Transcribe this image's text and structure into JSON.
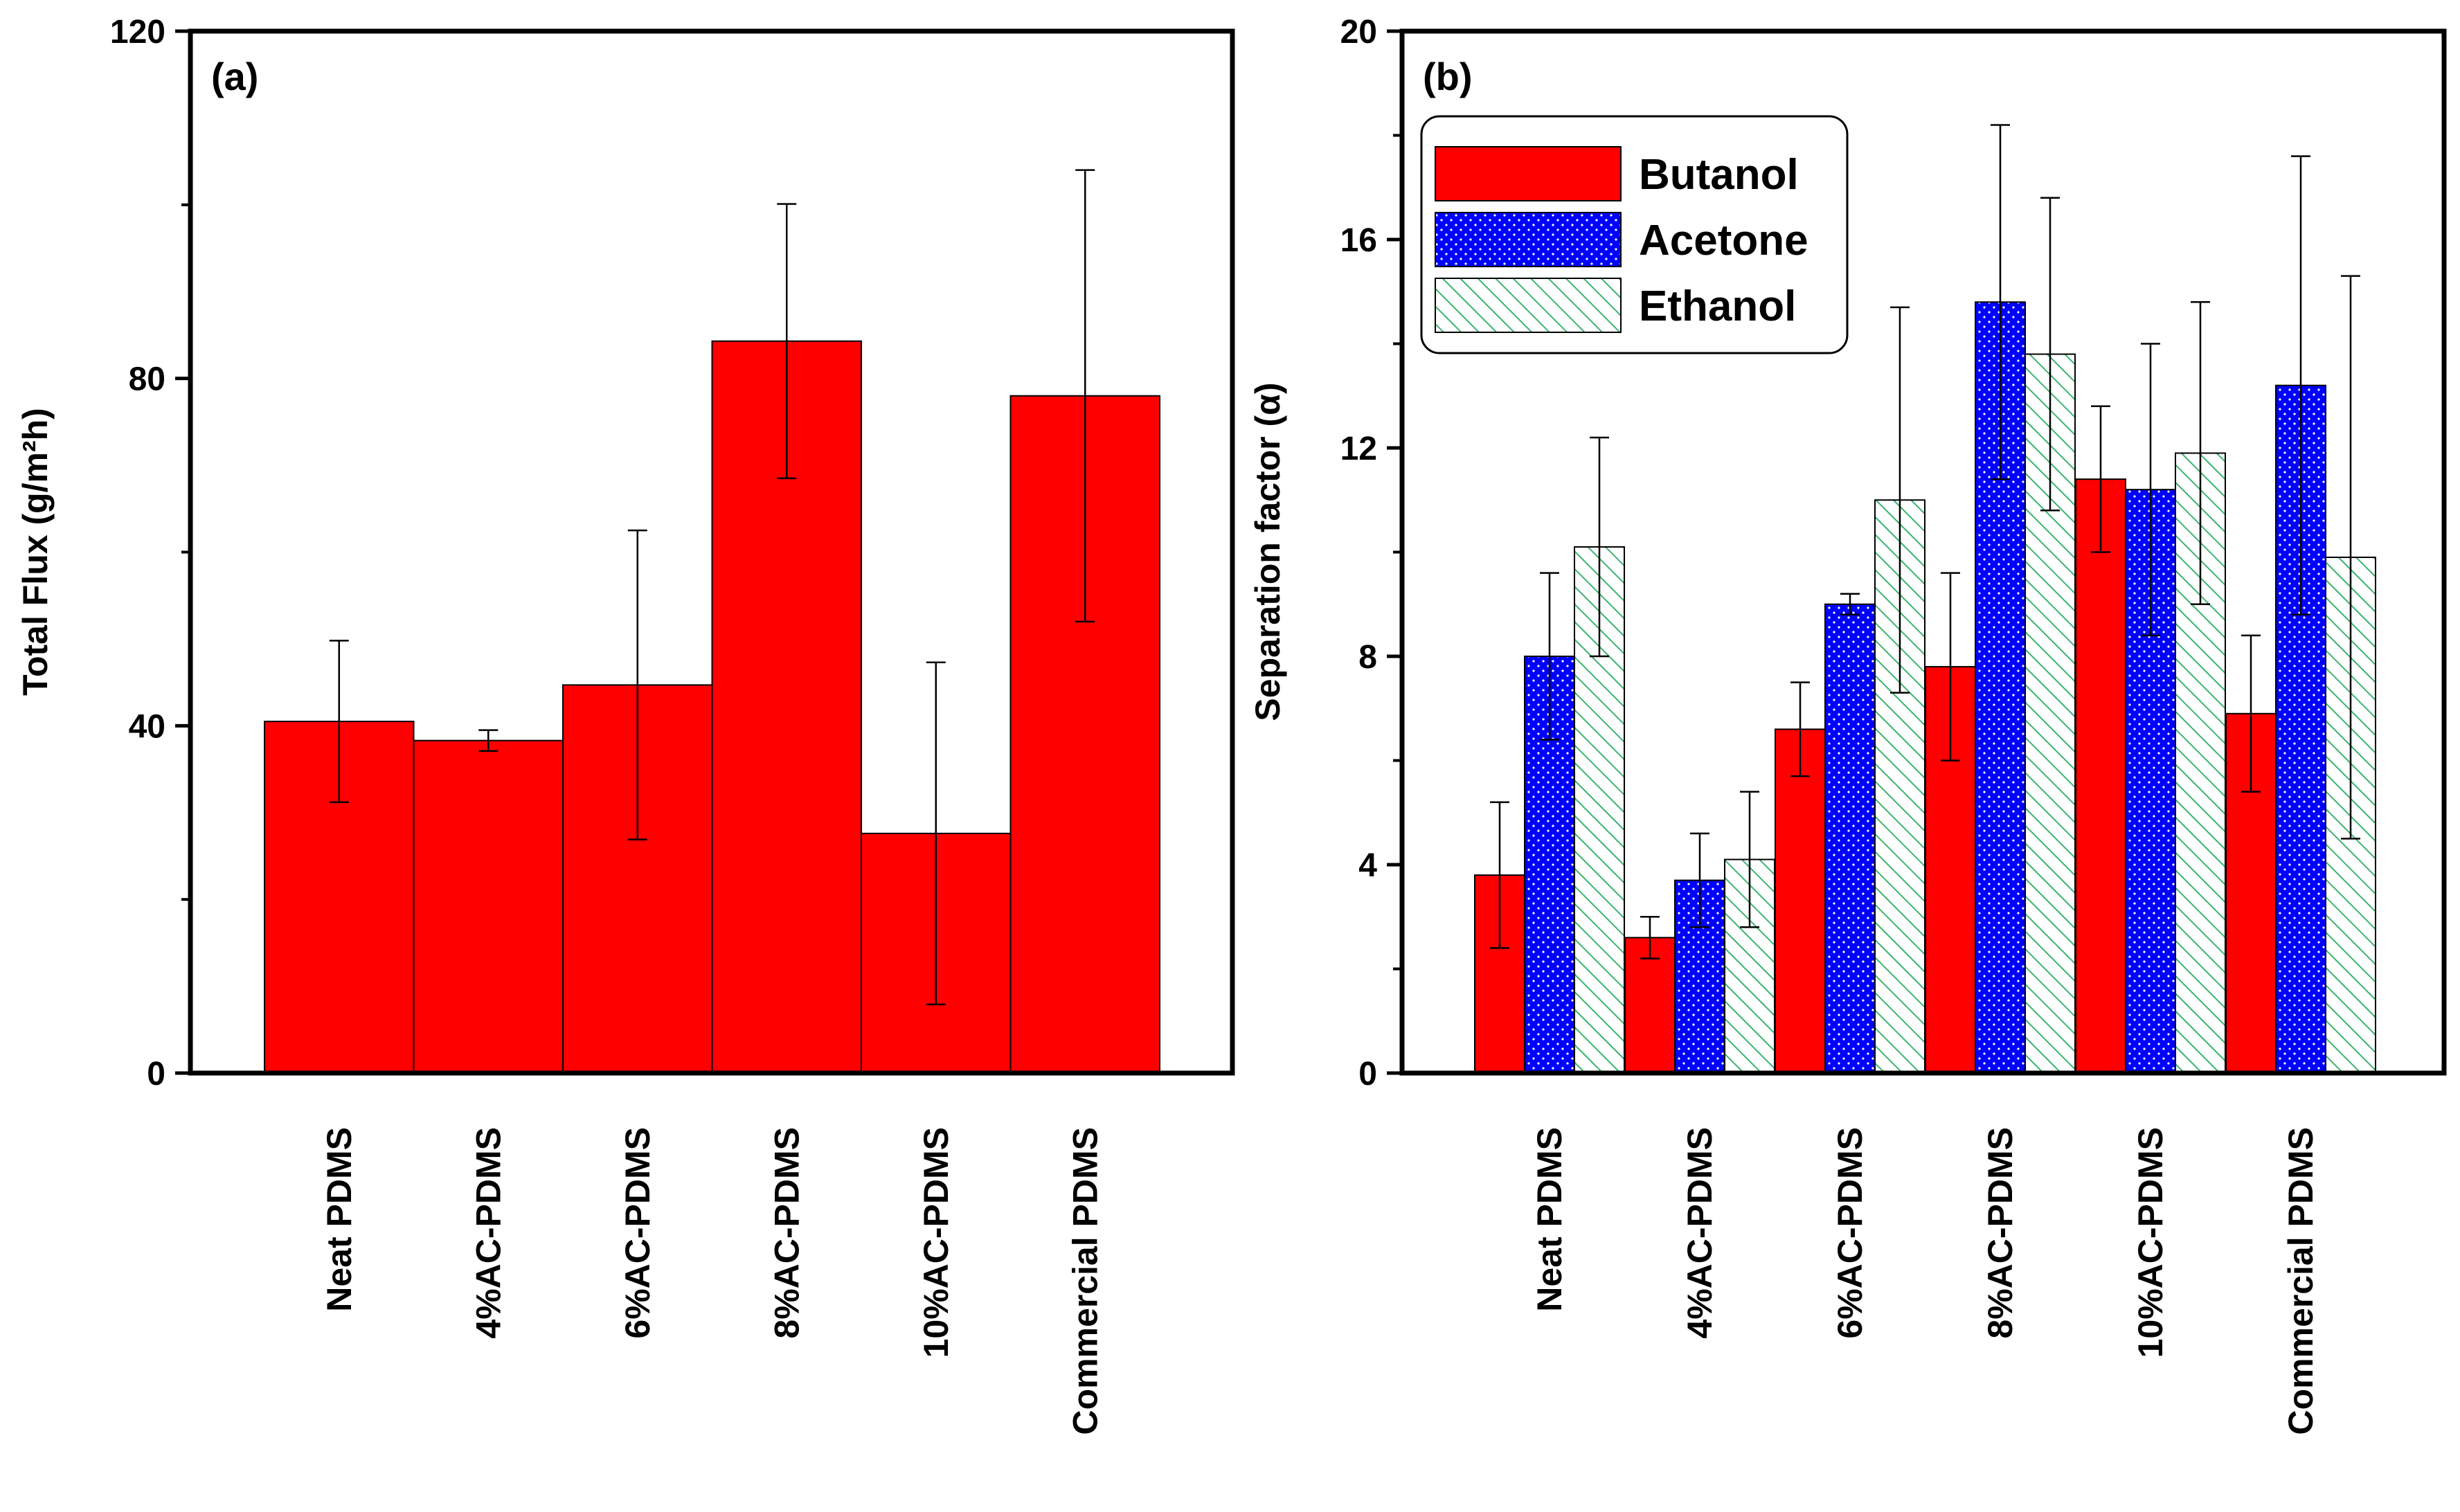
{
  "chart_data": [
    {
      "panel": "(a)",
      "type": "bar",
      "categories": [
        "Neat PDMS",
        "4%AC-PDMS",
        "6%AC-PDMS",
        "8%AC-PDMS",
        "10%AC-PDMS",
        "Commercial PDMS"
      ],
      "series": [
        {
          "name": "Total Flux",
          "color": "#ff0000",
          "pattern": "solid",
          "values": [
            40.5,
            38.3,
            44.7,
            84.3,
            27.6,
            78.0
          ],
          "errors": [
            9.3,
            1.2,
            17.8,
            15.8,
            19.7,
            26.0
          ]
        }
      ],
      "title": "",
      "xlabel": "",
      "ylabel": "Total Flux (g/m²h)",
      "ylim": [
        0,
        120
      ],
      "yticks": [
        0,
        40,
        80,
        120
      ],
      "tick_labels": [
        "0",
        "40",
        "80",
        "120"
      ]
    },
    {
      "panel": "(b)",
      "type": "bar",
      "categories": [
        "Neat PDMS",
        "4%AC-PDMS",
        "6%AC-PDMS",
        "8%AC-PDMS",
        "10%AC-PDMS",
        "Commercial PDMS"
      ],
      "series": [
        {
          "name": "Butanol",
          "color": "#ff0000",
          "pattern": "solid",
          "values": [
            3.8,
            2.6,
            6.6,
            7.8,
            11.4,
            6.9
          ],
          "errors": [
            1.4,
            0.4,
            0.9,
            1.8,
            1.4,
            1.5
          ]
        },
        {
          "name": "Acetone",
          "color": "#0000ff",
          "pattern": "dots",
          "values": [
            8.0,
            3.7,
            9.0,
            14.8,
            11.2,
            13.2
          ],
          "errors": [
            1.6,
            0.9,
            0.2,
            3.4,
            2.8,
            4.4
          ]
        },
        {
          "name": "Ethanol",
          "color": "#3cb371",
          "pattern": "hatch",
          "values": [
            10.1,
            4.1,
            11.0,
            13.8,
            11.9,
            9.9
          ],
          "errors": [
            2.1,
            1.3,
            3.7,
            3.0,
            2.9,
            5.4
          ]
        }
      ],
      "title": "",
      "xlabel": "",
      "ylabel": "Separation factor (α)",
      "ylim": [
        0,
        20
      ],
      "yticks": [
        0,
        4,
        8,
        12,
        16,
        20
      ],
      "tick_labels": [
        "0",
        "4",
        "8",
        "12",
        "16",
        "20"
      ],
      "legend": "top-left"
    }
  ]
}
